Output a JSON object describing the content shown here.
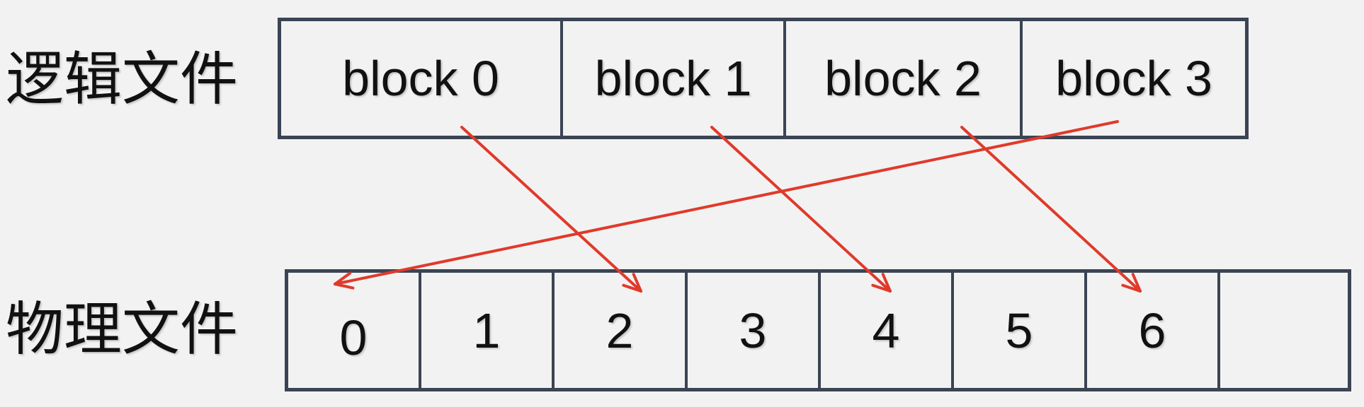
{
  "labels": {
    "logical": "逻辑文件",
    "physical": "物理文件"
  },
  "logical_blocks": [
    {
      "label": "block 0"
    },
    {
      "label": "block 1"
    },
    {
      "label": "block 2"
    },
    {
      "label": "block 3"
    }
  ],
  "physical_blocks": [
    {
      "label": "0"
    },
    {
      "label": "1"
    },
    {
      "label": "2"
    },
    {
      "label": "3"
    },
    {
      "label": "4"
    },
    {
      "label": "5"
    },
    {
      "label": "6"
    },
    {
      "label": ""
    }
  ],
  "mappings": [
    {
      "from": 0,
      "to": 2
    },
    {
      "from": 1,
      "to": 4
    },
    {
      "from": 2,
      "to": 6
    },
    {
      "from": 3,
      "to": 0
    }
  ],
  "colors": {
    "arrow": "#e03a2a",
    "border": "#3b4454",
    "background": "#f2f2f2",
    "text": "#111111"
  }
}
